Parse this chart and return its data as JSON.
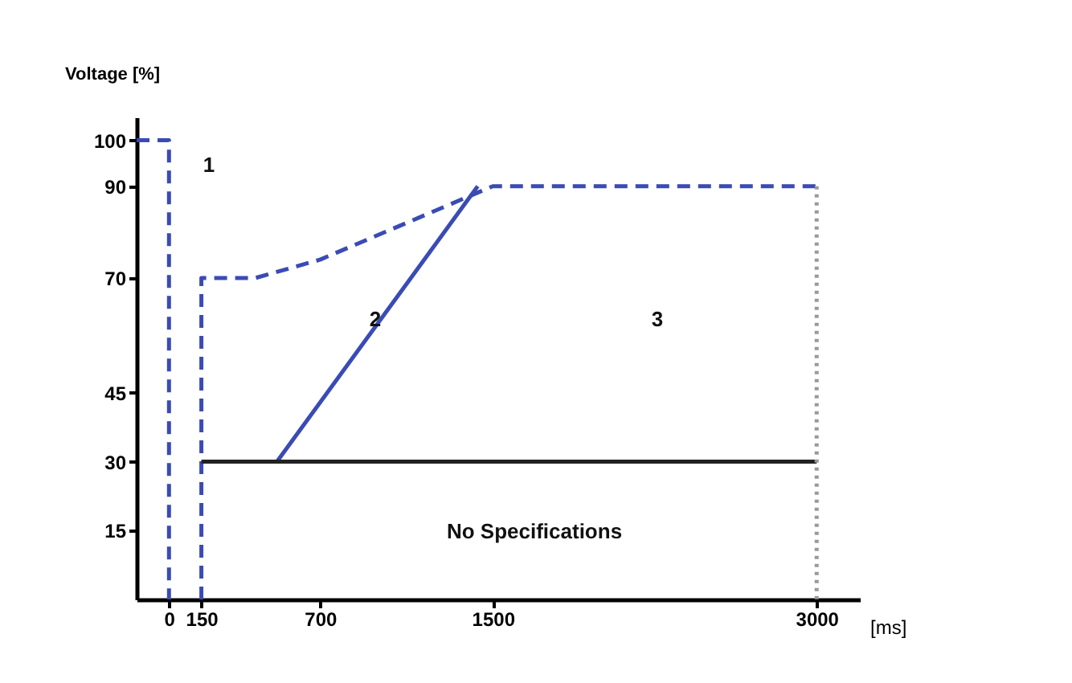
{
  "chart_data": {
    "type": "line",
    "xlabel": "[ms]",
    "ylabel": "Voltage [%]",
    "xlim": [
      -150,
      3200
    ],
    "ylim": [
      0,
      105
    ],
    "xticks": [
      0,
      150,
      700,
      {
        "value": 1500,
        "label": "1500"
      },
      {
        "value": 3000,
        "label": "3000"
      }
    ],
    "yticks": [
      15,
      30,
      45,
      70,
      90,
      100
    ],
    "grid": false,
    "marker": "none",
    "series": [
      {
        "color": "#3a4bb5",
        "line_style": "dashed",
        "x": [
          -150,
          0,
          0
        ],
        "values": [
          100,
          100,
          0
        ]
      },
      {
        "color": "#3a4bb5",
        "line_style": "dashed",
        "x": [
          150,
          150,
          400,
          700,
          1100,
          1500,
          3000
        ],
        "values": [
          0,
          70,
          70,
          74,
          82,
          90,
          90
        ]
      },
      {
        "color": "#3a4bb5",
        "line_style": "solid",
        "x": [
          500,
          1430
        ],
        "values": [
          30,
          90
        ]
      },
      {
        "color": "#222222",
        "line_style": "solid",
        "x": [
          150,
          3000
        ],
        "values": [
          30,
          30
        ]
      },
      {
        "color": "#999999",
        "line_style": "dotted",
        "x": [
          3000,
          3000
        ],
        "values": [
          90,
          0
        ]
      }
    ],
    "annotations": [
      "1",
      "2",
      "3",
      "No Specifications"
    ]
  }
}
